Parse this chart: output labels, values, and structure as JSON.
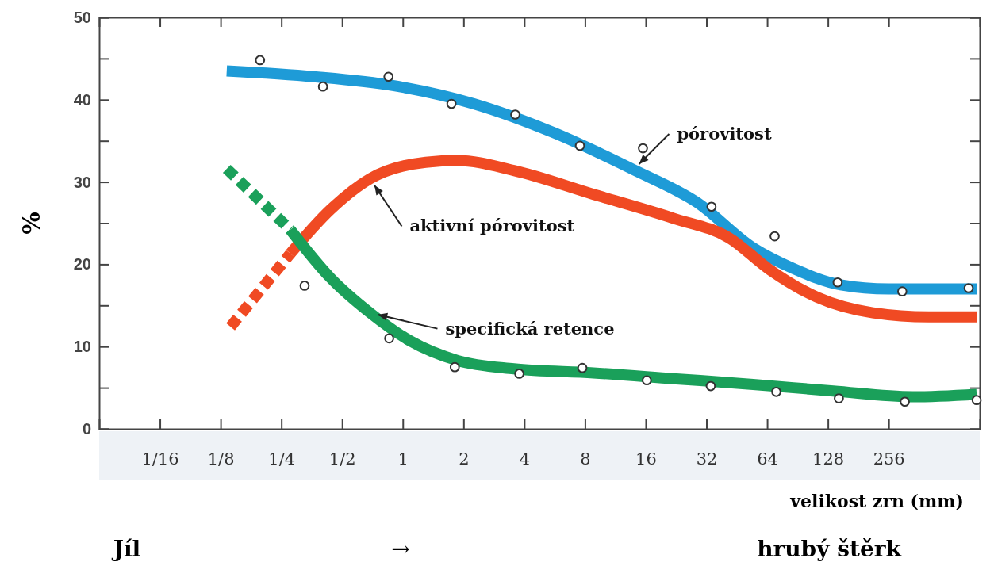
{
  "chart_data": {
    "type": "line",
    "xlabel": "velikost zrn (mm)",
    "ylabel": "%",
    "log": "x",
    "xlim": [
      0.03125,
      724
    ],
    "xticks": [
      {
        "value": 0.0625,
        "label": "1/16"
      },
      {
        "value": 0.125,
        "label": "1/8"
      },
      {
        "value": 0.25,
        "label": "1/4"
      },
      {
        "value": 0.5,
        "label": "1/2"
      },
      1,
      2,
      4,
      8,
      16,
      32,
      64,
      128,
      256
    ],
    "ylim": [
      0,
      50
    ],
    "yticks": [
      0,
      {
        "value": 5,
        "label": null
      },
      10,
      {
        "value": 15,
        "label": null
      },
      20,
      {
        "value": 25,
        "label": null
      },
      30,
      {
        "value": 35,
        "label": null
      },
      40,
      {
        "value": 45,
        "label": null
      },
      50
    ],
    "grid": false,
    "annotations": [
      "Jíl",
      "→",
      "hrubý štěrk"
    ],
    "series": [
      {
        "name": "pórovitost",
        "color": "#1e9bd7",
        "line_style": "solid",
        "marker": "none",
        "x": [
          0.134,
          0.364,
          0.905,
          2.25,
          5.59,
          13.9,
          28.8,
          54.5,
          86,
          148,
          256,
          699
        ],
        "values": [
          43.5,
          42.8,
          41.7,
          39.5,
          36,
          31.5,
          27.5,
          22,
          19.5,
          17.5,
          17,
          17
        ]
      },
      {
        "color": "#f04a23",
        "line_style": "dashed",
        "marker": "none",
        "x": [
          0.14,
          0.277
        ],
        "values": [
          12.4,
          21.3
        ]
      },
      {
        "name": "aktivní pórovitost",
        "color": "#f04a23",
        "line_style": "solid",
        "marker": "none",
        "x": [
          0.277,
          0.436,
          0.688,
          1.3,
          1.87,
          3.55,
          8.82,
          21.9,
          41.5,
          65.4,
          113,
          214,
          405,
          699
        ],
        "values": [
          21.3,
          26.6,
          30.4,
          32.4,
          32.6,
          31.4,
          28.5,
          25.6,
          23.2,
          19.4,
          16,
          14.1,
          13.6,
          13.6
        ]
      },
      {
        "color": "#1aa05a",
        "line_style": "dashed",
        "marker": "none",
        "x": [
          0.134,
          0.277
        ],
        "values": [
          31.6,
          24.2
        ]
      },
      {
        "name": "specifická retence",
        "color": "#1aa05a",
        "line_style": "solid",
        "marker": "none",
        "x": [
          0.277,
          0.436,
          0.688,
          1.085,
          1.87,
          3.55,
          8.82,
          21.9,
          54.5,
          136,
          337,
          699
        ],
        "values": [
          24.2,
          18.4,
          14.1,
          10.7,
          8.3,
          7.3,
          6.8,
          6.1,
          5.4,
          4.6,
          3.9,
          4.2
        ]
      },
      {
        "type": "scatter",
        "color": "#333333",
        "marker": "circle",
        "x": [
          0.196,
          0.402,
          0.849,
          1.743,
          3.61,
          7.55,
          15.5,
          33.9,
          69.7,
          143,
          299,
          638
        ],
        "values": [
          44.8,
          41.6,
          42.8,
          39.5,
          38.2,
          34.4,
          34.1,
          27.0,
          23.4,
          17.8,
          16.7,
          17.1
        ]
      },
      {
        "type": "scatter",
        "color": "#333333",
        "marker": "circle",
        "x": [
          0.326,
          0.856,
          1.81,
          3.78,
          7.76,
          16.2,
          33.6,
          71.0,
          145,
          308,
          699
        ],
        "values": [
          17.4,
          11.0,
          7.5,
          6.7,
          7.4,
          5.9,
          5.2,
          4.5,
          3.7,
          3.3,
          3.5
        ]
      }
    ]
  }
}
